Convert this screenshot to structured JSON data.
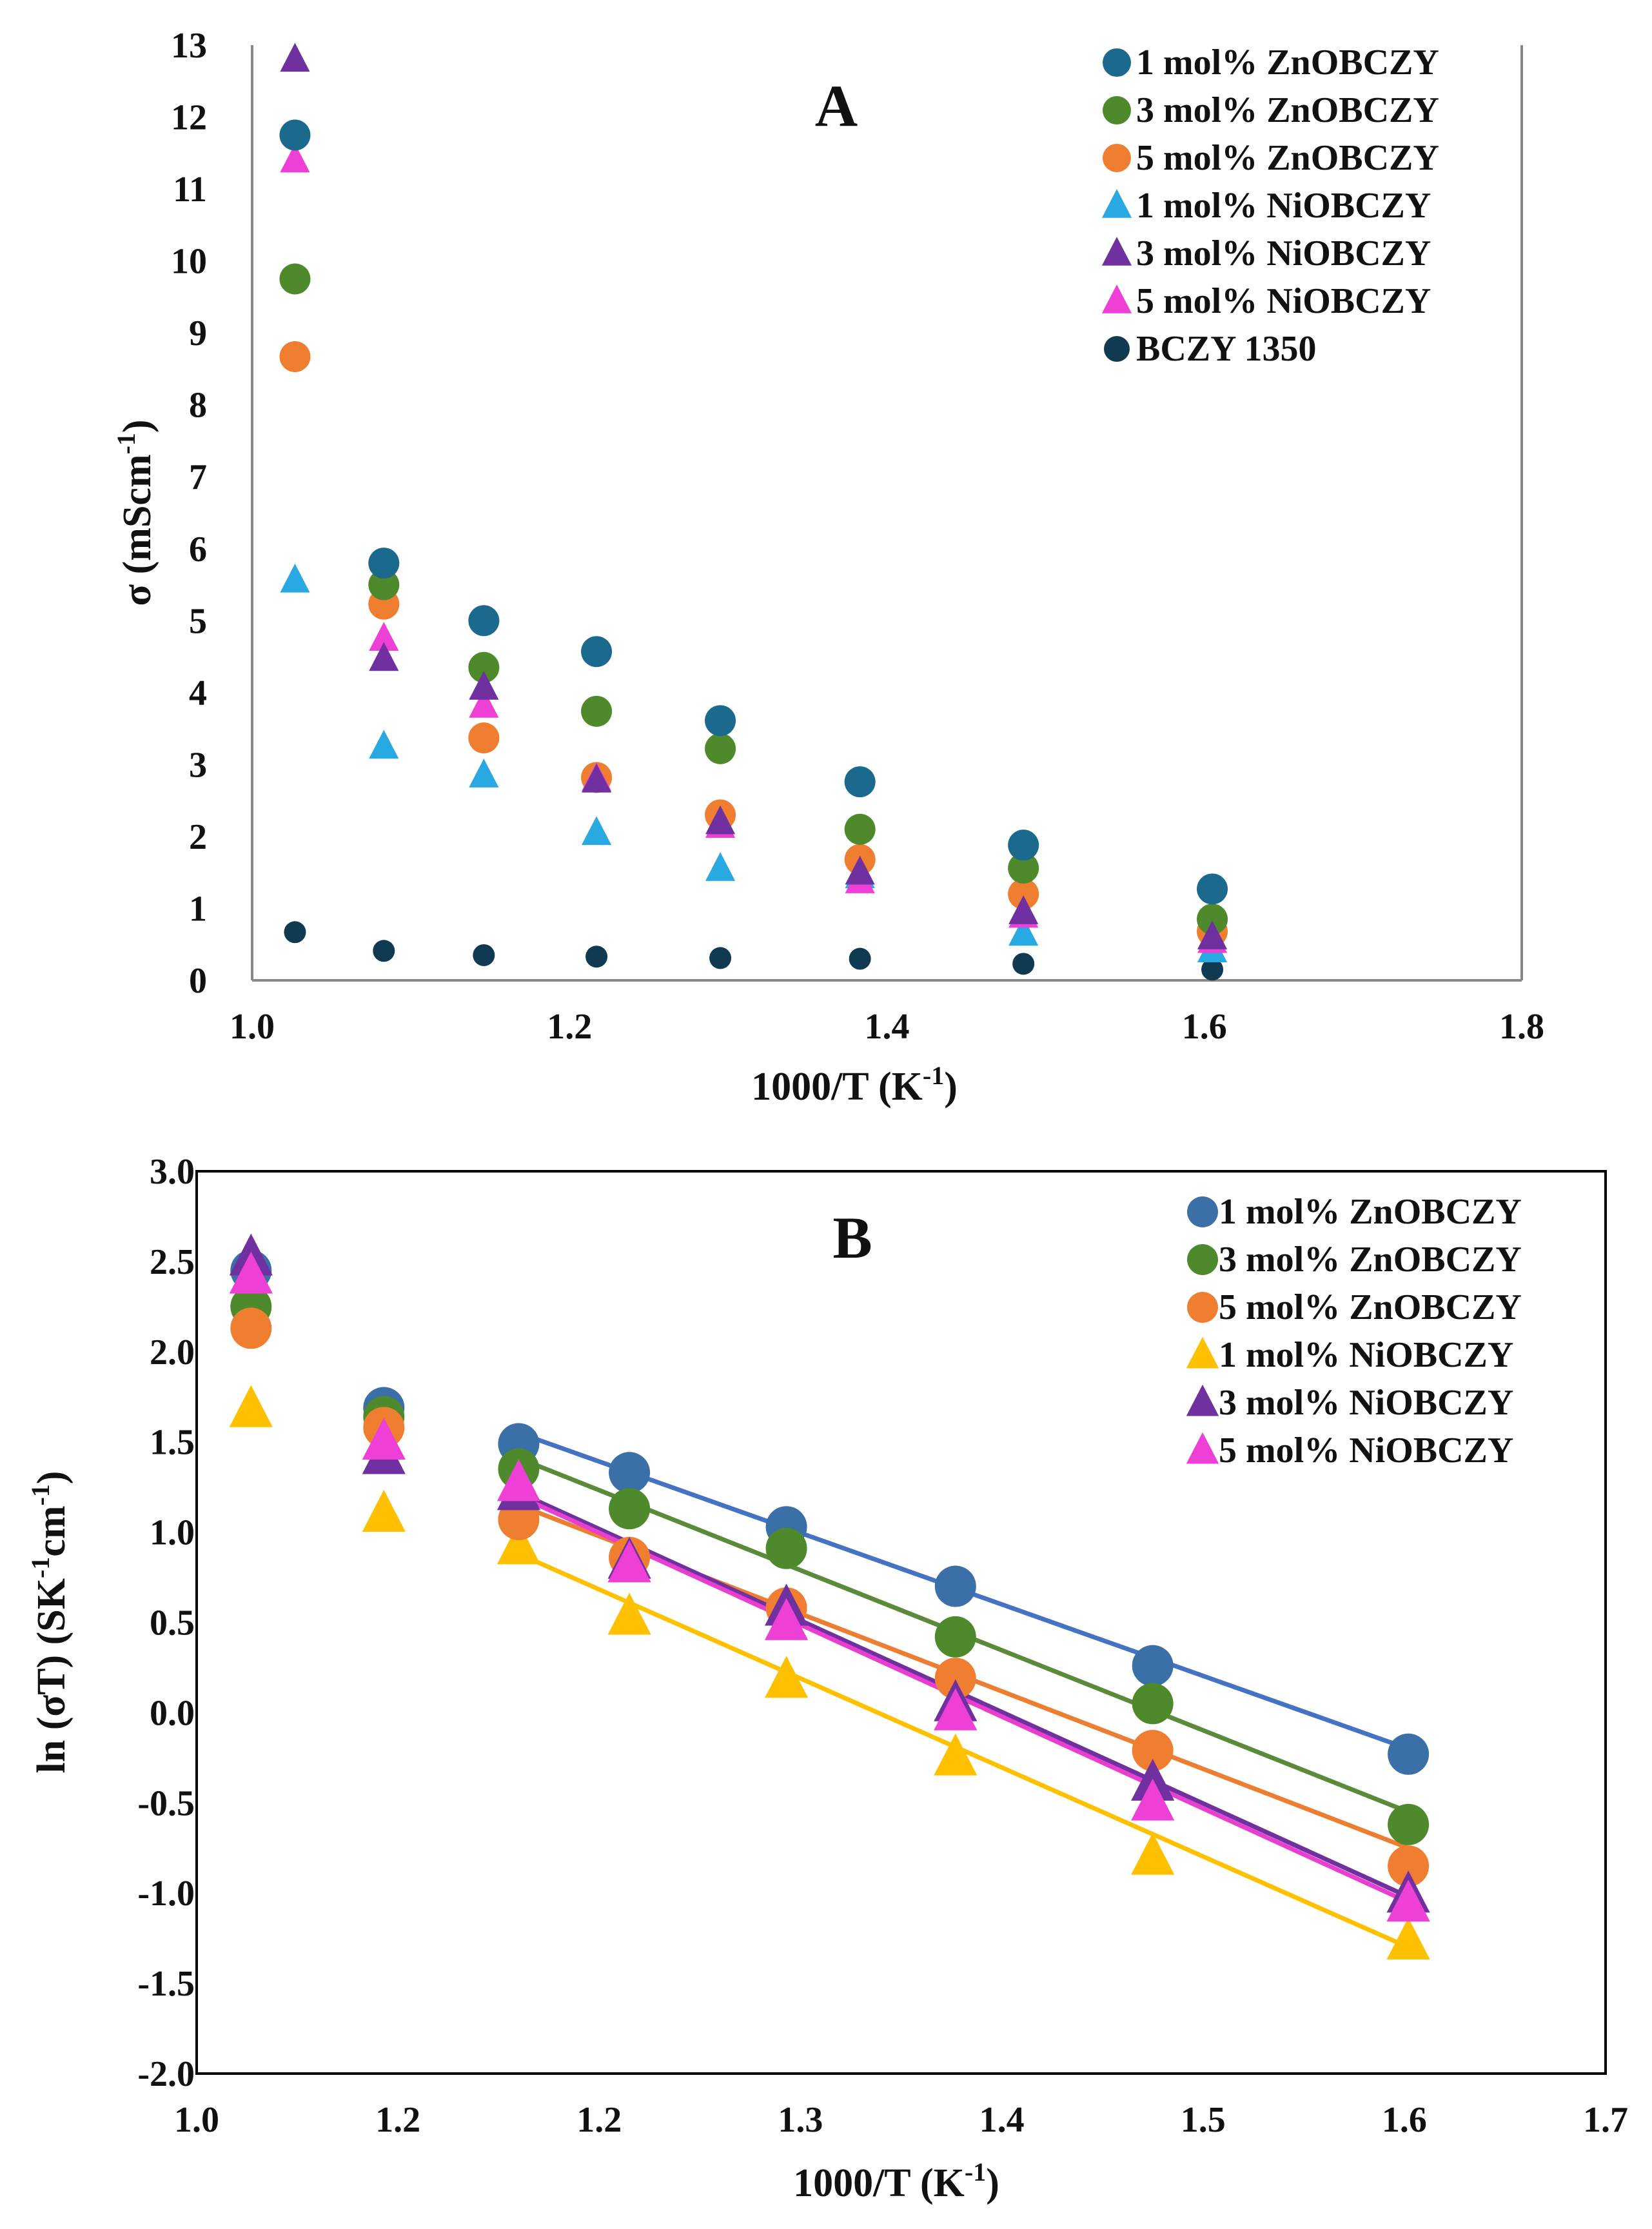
{
  "chart_data": [
    {
      "type": "scatter",
      "panel_label": "A",
      "xlabel": "1000/T (K",
      "xlabel_sup": "-1",
      "xlabel_end": ")",
      "ylabel": "σ (mScm",
      "ylabel_sup": "-1",
      "ylabel_end": ")",
      "xlim": [
        1.0,
        1.8
      ],
      "ylim": [
        0,
        13
      ],
      "xticks": [
        "1.0",
        "1.2",
        "1.4",
        "1.6",
        "1.8"
      ],
      "yticks": [
        "0",
        "1",
        "2",
        "3",
        "4",
        "5",
        "6",
        "7",
        "8",
        "9",
        "10",
        "11",
        "12",
        "13"
      ],
      "legend_position": "top-right",
      "x": [
        1.027,
        1.083,
        1.146,
        1.217,
        1.295,
        1.383,
        1.486,
        1.605
      ],
      "series": [
        {
          "name": "1 mol% ZnOBCZY",
          "marker": "circle",
          "color": "#1b6a8e",
          "values": [
            11.75,
            5.8,
            5.0,
            4.57,
            3.61,
            2.76,
            1.88,
            1.27
          ]
        },
        {
          "name": "3 mol% ZnOBCZY",
          "marker": "circle",
          "color": "#4e8a2b",
          "values": [
            9.75,
            5.5,
            4.35,
            3.74,
            3.22,
            2.1,
            1.56,
            0.85
          ]
        },
        {
          "name": "5 mol% ZnOBCZY",
          "marker": "circle",
          "color": "#ef7e31",
          "values": [
            8.67,
            5.23,
            3.37,
            2.82,
            2.3,
            1.68,
            1.2,
            0.68
          ]
        },
        {
          "name": "1 mol% NiOBCZY",
          "marker": "triangle",
          "color": "#28a9e1",
          "values": [
            5.56,
            3.25,
            2.85,
            2.05,
            1.55,
            1.45,
            0.65,
            0.42
          ]
        },
        {
          "name": "3 mol% NiOBCZY",
          "marker": "triangle",
          "color": "#7030a0",
          "values": [
            12.8,
            4.47,
            4.07,
            2.78,
            2.2,
            1.5,
            0.95,
            0.6
          ]
        },
        {
          "name": "5 mol% NiOBCZY",
          "marker": "triangle",
          "color": "#ee3fd6",
          "values": [
            11.4,
            4.75,
            3.82,
            2.8,
            2.15,
            1.38,
            0.9,
            0.55
          ]
        },
        {
          "name": "BCZY 1350",
          "marker": "small-circle",
          "color": "#0f3a52",
          "values": [
            0.67,
            0.41,
            0.35,
            0.33,
            0.31,
            0.3,
            0.23,
            0.15
          ]
        }
      ]
    },
    {
      "type": "scatter",
      "panel_label": "B",
      "xlabel": "1000/T (K",
      "xlabel_sup": "-1",
      "xlabel_end": ")",
      "ylabel": "ln (σT) (SK",
      "ylabel_sup1": "-1",
      "ylabel_mid": "cm",
      "ylabel_sup2": "-1",
      "ylabel_end": ")",
      "xlim": [
        1.0,
        1.7
      ],
      "ylim": [
        -2.0,
        3.0
      ],
      "xticks": [
        "1.0",
        "1.2",
        "1.2",
        "1.3",
        "1.4",
        "1.5",
        "1.6",
        "1.7"
      ],
      "yticks": [
        "-2.0",
        "-1.5",
        "-1.0",
        "-0.5",
        "0.0",
        "0.5",
        "1.0",
        "1.5",
        "2.0",
        "2.5",
        "3.0"
      ],
      "legend_position": "top-right",
      "x": [
        1.027,
        1.093,
        1.16,
        1.215,
        1.293,
        1.377,
        1.475,
        1.602
      ],
      "fit_range": [
        1.16,
        1.602
      ],
      "series": [
        {
          "name": "1 mol% ZnOBCZY",
          "marker": "circle",
          "color": "#3a6fa8",
          "line_color": "#4472c4",
          "values": [
            2.45,
            1.69,
            1.49,
            1.33,
            1.03,
            0.7,
            0.26,
            -0.23
          ],
          "fit": [
            1.55,
            -0.2
          ]
        },
        {
          "name": "3 mol% ZnOBCZY",
          "marker": "circle",
          "color": "#4e8a2b",
          "line_color": "#5b8a3a",
          "values": [
            2.25,
            1.64,
            1.35,
            1.13,
            0.91,
            0.42,
            0.05,
            -0.62
          ],
          "fit": [
            1.41,
            -0.55
          ]
        },
        {
          "name": "5 mol% ZnOBCZY",
          "marker": "circle",
          "color": "#ef7e31",
          "line_color": "#ed7d31",
          "values": [
            2.13,
            1.58,
            1.07,
            0.86,
            0.58,
            0.19,
            -0.21,
            -0.85
          ],
          "fit": [
            1.15,
            -0.75
          ]
        },
        {
          "name": "1 mol% NiOBCZY",
          "marker": "triangle",
          "color": "#ffc000",
          "line_color": "#ffc000",
          "values": [
            1.68,
            1.1,
            0.92,
            0.53,
            0.18,
            -0.25,
            -0.8,
            -1.27
          ],
          "fit": [
            0.88,
            -1.3
          ]
        },
        {
          "name": "3 mol% NiOBCZY",
          "marker": "triangle",
          "color": "#7030a0",
          "line_color": "#7030a0",
          "values": [
            2.52,
            1.42,
            1.22,
            0.84,
            0.58,
            0.05,
            -0.39,
            -1.01
          ],
          "fit": [
            1.22,
            -1.02
          ]
        },
        {
          "name": "5 mol% NiOBCZY",
          "marker": "triangle",
          "color": "#ee3fd6",
          "line_color": "#e83fd0",
          "values": [
            2.42,
            1.5,
            1.27,
            0.82,
            0.5,
            0.0,
            -0.5,
            -1.06
          ],
          "fit": [
            1.2,
            -1.05
          ]
        }
      ]
    }
  ]
}
